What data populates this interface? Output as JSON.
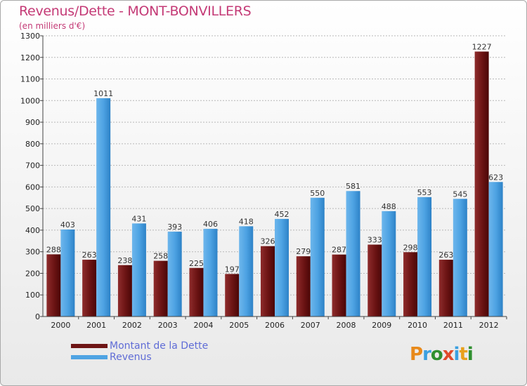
{
  "chart_data": {
    "type": "bar",
    "title": "Revenus/Dette - MONT-BONVILLERS",
    "subtitle": "(en milliers d'€)",
    "xlabel": "",
    "ylabel": "",
    "ylim": [
      0,
      1300
    ],
    "yticks": [
      0,
      100,
      200,
      300,
      400,
      500,
      600,
      700,
      800,
      900,
      1000,
      1100,
      1200,
      1300
    ],
    "grid": true,
    "categories": [
      "2000",
      "2001",
      "2002",
      "2003",
      "2004",
      "2005",
      "2006",
      "2007",
      "2008",
      "2009",
      "2010",
      "2011",
      "2012"
    ],
    "series": [
      {
        "name": "Montant de la Dette",
        "color": "#7a1d1d",
        "values": [
          288,
          263,
          238,
          258,
          225,
          197,
          326,
          279,
          287,
          333,
          298,
          263,
          1227
        ]
      },
      {
        "name": "Revenus",
        "color": "#4ea3e3",
        "values": [
          403,
          1011,
          431,
          393,
          406,
          418,
          452,
          550,
          581,
          488,
          553,
          545,
          623
        ]
      }
    ],
    "legend_position": "bottom-left"
  },
  "logo": {
    "letters": [
      "P",
      "r",
      "o",
      "x",
      "i",
      "t",
      "i"
    ],
    "colors": [
      "#e8891a",
      "#3aa0e0",
      "#2f8f2f",
      "#e04a2a",
      "#3aa0e0",
      "#e8a01a",
      "#2f8f2f"
    ]
  }
}
